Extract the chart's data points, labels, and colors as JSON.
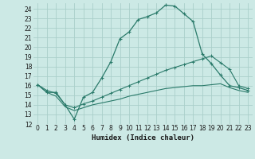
{
  "xlabel": "Humidex (Indice chaleur)",
  "background_color": "#cce9e5",
  "grid_color": "#aacfca",
  "line_color": "#2a7a6a",
  "xlim": [
    -0.5,
    23.5
  ],
  "ylim": [
    12,
    24.6
  ],
  "yticks": [
    12,
    13,
    14,
    15,
    16,
    17,
    18,
    19,
    20,
    21,
    22,
    23,
    24
  ],
  "xticks": [
    0,
    1,
    2,
    3,
    4,
    5,
    6,
    7,
    8,
    9,
    10,
    11,
    12,
    13,
    14,
    15,
    16,
    17,
    18,
    19,
    20,
    21,
    22,
    23
  ],
  "series1_x": [
    0,
    1,
    2,
    3,
    4,
    5,
    6,
    7,
    8,
    9,
    10,
    11,
    12,
    13,
    14,
    15,
    16,
    17,
    18,
    19,
    20,
    21,
    22,
    23
  ],
  "series1_y": [
    16.1,
    15.3,
    15.3,
    14.0,
    12.5,
    14.8,
    15.3,
    16.8,
    18.5,
    20.9,
    21.6,
    22.9,
    23.2,
    23.6,
    24.4,
    24.3,
    23.5,
    22.7,
    19.3,
    18.3,
    17.1,
    16.0,
    15.8,
    15.5
  ],
  "series2_x": [
    0,
    1,
    2,
    3,
    4,
    5,
    6,
    7,
    8,
    9,
    10,
    11,
    12,
    13,
    14,
    15,
    16,
    17,
    18,
    19,
    20,
    21,
    22,
    23
  ],
  "series2_y": [
    16.1,
    15.5,
    15.2,
    14.0,
    13.7,
    14.1,
    14.4,
    14.8,
    15.2,
    15.6,
    16.0,
    16.4,
    16.8,
    17.2,
    17.6,
    17.9,
    18.2,
    18.5,
    18.8,
    19.1,
    18.4,
    17.7,
    16.0,
    15.7
  ],
  "series3_x": [
    0,
    1,
    2,
    3,
    4,
    5,
    6,
    7,
    8,
    9,
    10,
    11,
    12,
    13,
    14,
    15,
    16,
    17,
    18,
    19,
    20,
    21,
    22,
    23
  ],
  "series3_y": [
    16.1,
    15.3,
    14.9,
    13.8,
    13.4,
    13.7,
    14.0,
    14.2,
    14.4,
    14.6,
    14.9,
    15.1,
    15.3,
    15.5,
    15.7,
    15.8,
    15.9,
    16.0,
    16.0,
    16.1,
    16.2,
    15.8,
    15.5,
    15.3
  ]
}
